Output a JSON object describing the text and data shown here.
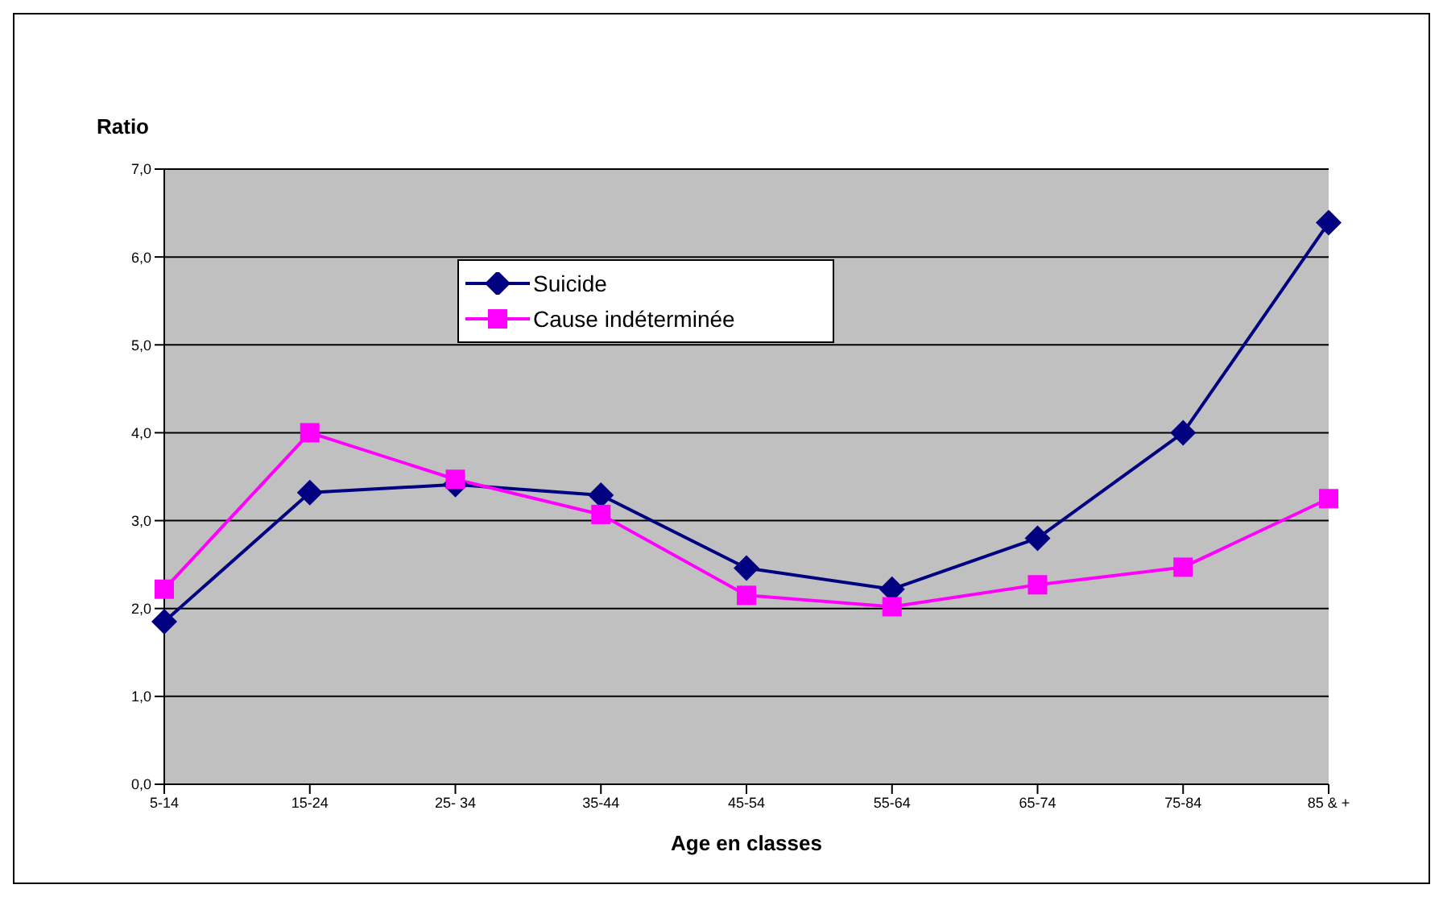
{
  "chart_data": {
    "type": "line",
    "ylabel": "Ratio",
    "xlabel": "Age en classes",
    "categories": [
      "5-14",
      "15-24",
      "25- 34",
      "35-44",
      "45-54",
      "55-64",
      "65-74",
      "75-84",
      "85 & +"
    ],
    "series": [
      {
        "name": "Suicide",
        "color": "#000080",
        "marker": "diamond",
        "values": [
          1.85,
          3.32,
          3.41,
          3.29,
          2.46,
          2.22,
          2.8,
          4.0,
          6.39
        ]
      },
      {
        "name": "Cause indéterminée",
        "color": "#ff00ff",
        "marker": "square",
        "values": [
          2.22,
          4.0,
          3.47,
          3.07,
          2.15,
          2.02,
          2.27,
          2.47,
          3.25
        ]
      }
    ],
    "ylim": [
      0,
      7
    ],
    "yticks": [
      {
        "value": 0,
        "label": "0,0"
      },
      {
        "value": 1,
        "label": "1,0"
      },
      {
        "value": 2,
        "label": "2,0"
      },
      {
        "value": 3,
        "label": "3,0"
      },
      {
        "value": 4,
        "label": "4,0"
      },
      {
        "value": 5,
        "label": "5,0"
      },
      {
        "value": 6,
        "label": "6,0"
      },
      {
        "value": 7,
        "label": "7,0"
      }
    ],
    "grid": "y",
    "legend": "top left"
  }
}
